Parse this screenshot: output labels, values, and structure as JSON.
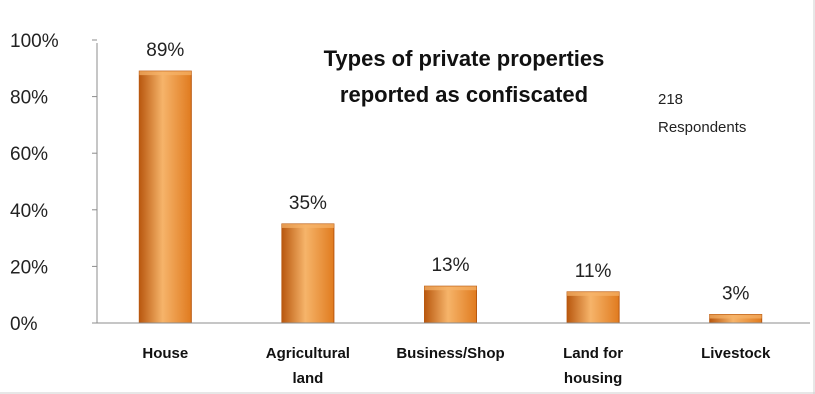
{
  "chart_data": {
    "type": "bar",
    "title_lines": [
      "Types of private properties",
      "reported as confiscated"
    ],
    "annotation_lines": [
      "218",
      "Respondents"
    ],
    "categories": [
      [
        "House"
      ],
      [
        "Agricultural",
        "land"
      ],
      [
        "Business/Shop"
      ],
      [
        "Land for",
        "housing"
      ],
      [
        "Livestock"
      ]
    ],
    "values": [
      89,
      35,
      13,
      11,
      3
    ],
    "data_labels": [
      "89%",
      "35%",
      "13%",
      "11%",
      "3%"
    ],
    "ylim": [
      0,
      100
    ],
    "yticks": [
      0,
      20,
      40,
      60,
      80,
      100
    ],
    "ytick_labels": [
      "0%",
      "20%",
      "40%",
      "60%",
      "80%",
      "100%"
    ],
    "xlabel": "",
    "ylabel": "",
    "grid": false,
    "bar_color": "#E07B1F",
    "bar_highlight": "#F6B46A",
    "bar_shadow": "#B9580F"
  }
}
